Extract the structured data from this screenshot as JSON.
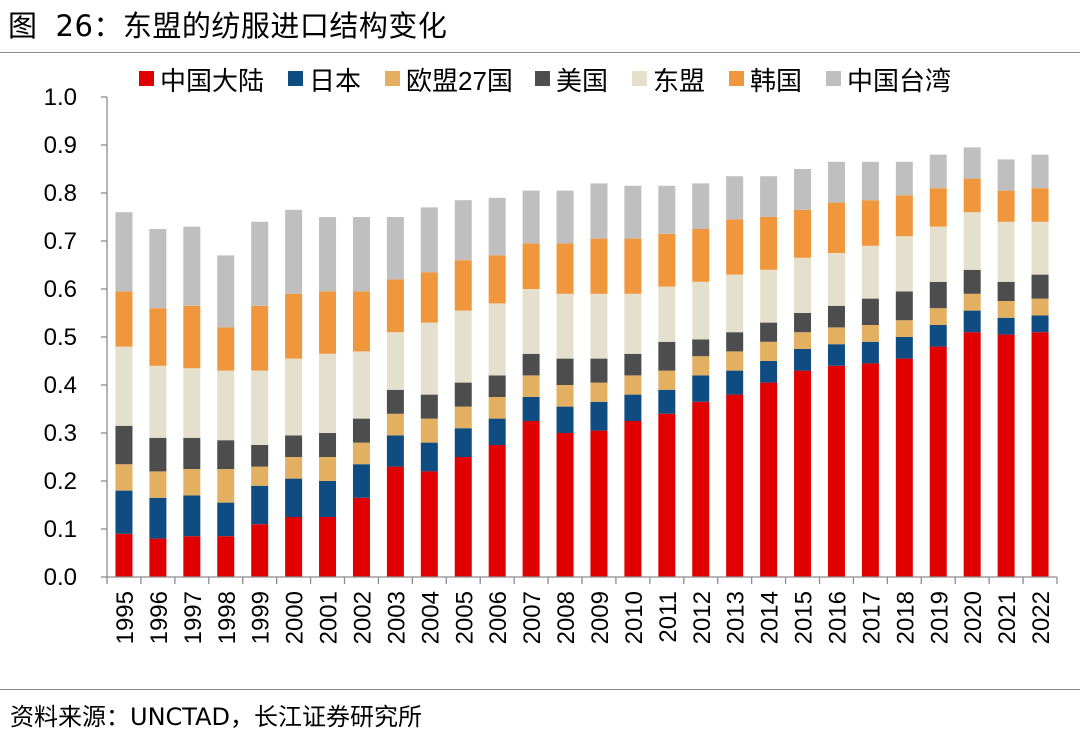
{
  "figure": {
    "label": "图",
    "number": "26：",
    "caption": "东盟的纺服进口结构变化"
  },
  "source_note": "资料来源：UNCTAD，长江证券研究所",
  "chart_data": {
    "type": "bar",
    "stacked": true,
    "categories": [
      "1995",
      "1996",
      "1997",
      "1998",
      "1999",
      "2000",
      "2001",
      "2002",
      "2003",
      "2004",
      "2005",
      "2006",
      "2007",
      "2008",
      "2009",
      "2010",
      "2011",
      "2012",
      "2013",
      "2014",
      "2015",
      "2016",
      "2017",
      "2018",
      "2019",
      "2020",
      "2021",
      "2022"
    ],
    "ylim": [
      0,
      1.0
    ],
    "yticks": [
      "0.0",
      "0.1",
      "0.2",
      "0.3",
      "0.4",
      "0.5",
      "0.6",
      "0.7",
      "0.8",
      "0.9",
      "1.0"
    ],
    "grid": false,
    "legend_position": "top",
    "series": [
      {
        "name": "中国大陆",
        "color": "#e00000",
        "values": [
          0.09,
          0.08,
          0.085,
          0.085,
          0.11,
          0.125,
          0.125,
          0.165,
          0.23,
          0.22,
          0.25,
          0.275,
          0.325,
          0.3,
          0.305,
          0.325,
          0.34,
          0.365,
          0.38,
          0.405,
          0.43,
          0.44,
          0.445,
          0.455,
          0.48,
          0.51,
          0.505,
          0.51
        ]
      },
      {
        "name": "日本",
        "color": "#0f4c81",
        "values": [
          0.09,
          0.085,
          0.085,
          0.07,
          0.08,
          0.08,
          0.075,
          0.07,
          0.065,
          0.06,
          0.06,
          0.055,
          0.05,
          0.055,
          0.06,
          0.055,
          0.05,
          0.055,
          0.05,
          0.045,
          0.045,
          0.045,
          0.045,
          0.045,
          0.045,
          0.045,
          0.035,
          0.035
        ]
      },
      {
        "name": "欧盟27国",
        "color": "#e3b062",
        "values": [
          0.055,
          0.055,
          0.055,
          0.07,
          0.04,
          0.045,
          0.05,
          0.045,
          0.045,
          0.05,
          0.045,
          0.045,
          0.045,
          0.045,
          0.04,
          0.04,
          0.04,
          0.04,
          0.04,
          0.04,
          0.035,
          0.035,
          0.035,
          0.035,
          0.035,
          0.035,
          0.035,
          0.035
        ]
      },
      {
        "name": "美国",
        "color": "#4d4d4d",
        "values": [
          0.08,
          0.07,
          0.065,
          0.06,
          0.045,
          0.045,
          0.05,
          0.05,
          0.05,
          0.05,
          0.05,
          0.045,
          0.045,
          0.055,
          0.05,
          0.045,
          0.06,
          0.035,
          0.04,
          0.04,
          0.04,
          0.045,
          0.055,
          0.06,
          0.055,
          0.05,
          0.04,
          0.05
        ]
      },
      {
        "name": "东盟",
        "color": "#e5e0cd",
        "values": [
          0.165,
          0.15,
          0.145,
          0.145,
          0.155,
          0.16,
          0.165,
          0.14,
          0.12,
          0.15,
          0.15,
          0.15,
          0.135,
          0.135,
          0.135,
          0.125,
          0.115,
          0.12,
          0.12,
          0.11,
          0.115,
          0.11,
          0.11,
          0.115,
          0.115,
          0.12,
          0.125,
          0.11
        ]
      },
      {
        "name": "韩国",
        "color": "#f0963c",
        "values": [
          0.115,
          0.12,
          0.13,
          0.09,
          0.135,
          0.135,
          0.13,
          0.125,
          0.11,
          0.105,
          0.105,
          0.1,
          0.095,
          0.105,
          0.115,
          0.115,
          0.11,
          0.11,
          0.115,
          0.11,
          0.1,
          0.105,
          0.095,
          0.085,
          0.08,
          0.07,
          0.065,
          0.07
        ]
      },
      {
        "name": "中国台湾",
        "color": "#bfbfbf",
        "values": [
          0.165,
          0.165,
          0.165,
          0.15,
          0.175,
          0.175,
          0.155,
          0.155,
          0.13,
          0.135,
          0.125,
          0.12,
          0.11,
          0.11,
          0.115,
          0.11,
          0.1,
          0.095,
          0.09,
          0.085,
          0.085,
          0.085,
          0.08,
          0.07,
          0.07,
          0.065,
          0.065,
          0.07
        ]
      }
    ]
  }
}
